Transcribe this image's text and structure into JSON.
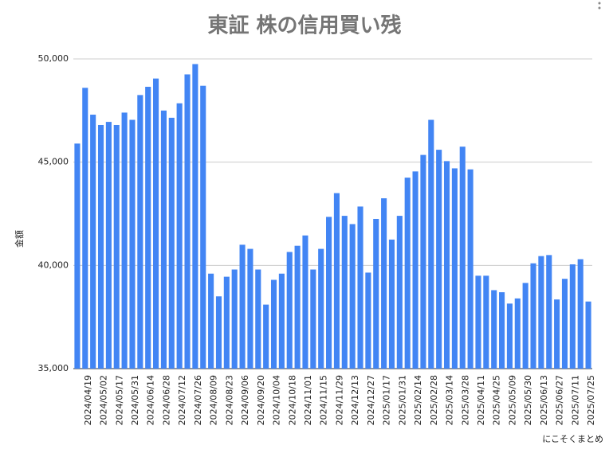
{
  "chart_data": {
    "type": "bar",
    "title": "東証 株の信用買い残",
    "y_label": "金額",
    "source": "にこそくまとめ",
    "categories": [
      null,
      "2024/04/19",
      null,
      "2024/05/02",
      null,
      "2024/05/17",
      null,
      "2024/05/31",
      null,
      "2024/06/14",
      null,
      "2024/06/28",
      null,
      "2024/07/12",
      null,
      "2024/07/26",
      null,
      "2024/08/09",
      null,
      "2024/08/23",
      null,
      "2024/09/06",
      null,
      "2024/09/20",
      null,
      "2024/10/04",
      null,
      "2024/10/18",
      null,
      "2024/11/01",
      null,
      "2024/11/15",
      null,
      "2024/11/29",
      null,
      "2024/12/13",
      null,
      "2024/12/27",
      null,
      "2025/01/17",
      null,
      "2025/01/31",
      null,
      "2025/02/14",
      null,
      "2025/02/28",
      null,
      "2025/03/14",
      null,
      "2025/03/28",
      null,
      "2025/04/11",
      null,
      "2025/04/25",
      null,
      "2025/05/09",
      null,
      "2025/05/30",
      null,
      "2025/06/13",
      null,
      "2025/06/27",
      null,
      "2025/07/11",
      null,
      "2025/07/25"
    ],
    "values": [
      45900,
      48600,
      47300,
      46800,
      46950,
      46800,
      47400,
      47050,
      48250,
      48650,
      49050,
      47500,
      47150,
      47850,
      49250,
      49750,
      48700,
      39600,
      38500,
      39450,
      39800,
      41000,
      40800,
      39800,
      38100,
      39300,
      39600,
      40650,
      40950,
      41450,
      39800,
      40800,
      42350,
      43500,
      42400,
      42000,
      42850,
      39650,
      42250,
      43250,
      41250,
      42400,
      44250,
      44550,
      45350,
      47050,
      45600,
      45050,
      44700,
      45750,
      44650,
      39500,
      39500,
      38800,
      38700,
      38150,
      38400,
      39150,
      40100,
      40450,
      40500,
      38350,
      39350,
      40050,
      40300,
      38250
    ],
    "color": "#4285f4",
    "ylim": [
      35000,
      50000
    ],
    "yticks": [
      {
        "value": 35000,
        "label": "35,000"
      },
      {
        "value": 40000,
        "label": "40,000"
      },
      {
        "value": 45000,
        "label": "45,000"
      },
      {
        "value": 50000,
        "label": "50,000"
      }
    ],
    "grid": true
  }
}
